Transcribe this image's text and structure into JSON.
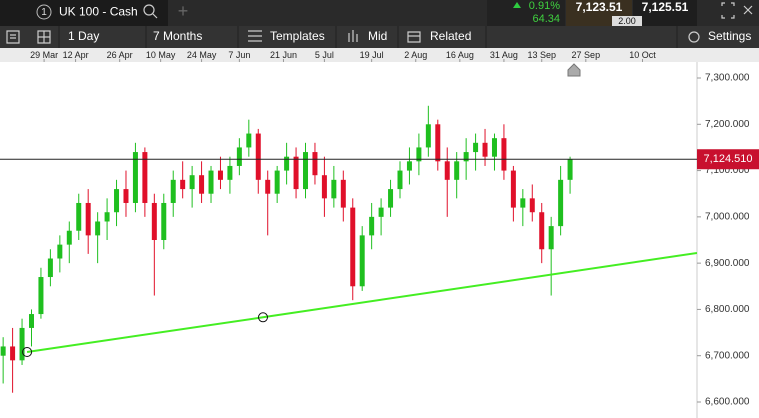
{
  "header": {
    "tab_number": "1",
    "instrument": "UK 100 - Cash",
    "add_tab": "+",
    "change_pct": "0.91%",
    "change_pts": "64.34",
    "sell": "7,123.51",
    "buy": "7,125.51",
    "spread": "2.00"
  },
  "toolbar": {
    "interval": "1 Day",
    "range": "7 Months",
    "templates": "Templates",
    "price_type": "Mid",
    "related": "Related",
    "settings": "Settings"
  },
  "chart_data": {
    "type": "candlestick",
    "up_color": "#1fbf1f",
    "down_color": "#e0102a",
    "trendline_color": "#44ee22",
    "xlim": [
      0,
      221.3
    ],
    "ylim": [
      6565.4,
      7334.6
    ],
    "xticks": [
      {
        "value": 14,
        "label": "29 Mar"
      },
      {
        "value": 24,
        "label": "12 Apr"
      },
      {
        "value": 38,
        "label": "26 Apr"
      },
      {
        "value": 51,
        "label": "10 May"
      },
      {
        "value": 64,
        "label": "24 May"
      },
      {
        "value": 76,
        "label": "7 Jun"
      },
      {
        "value": 90,
        "label": "21 Jun"
      },
      {
        "value": 103,
        "label": "5 Jul"
      },
      {
        "value": 118,
        "label": "19 Jul"
      },
      {
        "value": 132,
        "label": "2 Aug"
      },
      {
        "value": 146,
        "label": "16 Aug"
      },
      {
        "value": 160,
        "label": "31 Aug"
      },
      {
        "value": 172,
        "label": "13 Sep"
      },
      {
        "value": 186,
        "label": "27 Sep"
      },
      {
        "value": 204,
        "label": "10 Oct"
      }
    ],
    "yticks": [
      {
        "value": 6600,
        "label": "6,600.000"
      },
      {
        "value": 6700,
        "label": "6,700.000"
      },
      {
        "value": 6800,
        "label": "6,800.000"
      },
      {
        "value": 6900,
        "label": "6,900.000"
      },
      {
        "value": 7000,
        "label": "7,000.000"
      },
      {
        "value": 7100,
        "label": "7,100.000"
      },
      {
        "value": 7200,
        "label": "7,200.000"
      },
      {
        "value": 7300,
        "label": "7,300.000"
      }
    ],
    "current_price": {
      "value": 7124.51,
      "label": "7,124.510"
    },
    "trendline": {
      "x": [
        8.6,
        83.5,
        221.3
      ],
      "y": [
        6708,
        6783,
        6922
      ]
    },
    "x": [
      1,
      4,
      7,
      10,
      13,
      16,
      19,
      22,
      25,
      28,
      31,
      34,
      37,
      40,
      43,
      46,
      49,
      52,
      55,
      58,
      61,
      64,
      67,
      70,
      73,
      76,
      79,
      82,
      85,
      88,
      91,
      94,
      97,
      100,
      103,
      106,
      109,
      112,
      115,
      118,
      121,
      124,
      127,
      130,
      133,
      136,
      139,
      142,
      145,
      148,
      151,
      154,
      157,
      160,
      163,
      166,
      169,
      172,
      175,
      178,
      181
    ],
    "open": [
      6700,
      6720,
      6690,
      6760,
      6790,
      6870,
      6910,
      6940,
      6970,
      7030,
      6960,
      6990,
      7010,
      7060,
      7030,
      7140,
      7030,
      6950,
      7030,
      7080,
      7060,
      7090,
      7050,
      7100,
      7080,
      7110,
      7150,
      7180,
      7080,
      7050,
      7100,
      7130,
      7060,
      7140,
      7090,
      7040,
      7080,
      7020,
      6850,
      6960,
      7000,
      7020,
      7060,
      7100,
      7120,
      7150,
      7200,
      7120,
      7080,
      7120,
      7140,
      7160,
      7130,
      7170,
      7100,
      7020,
      7040,
      7010,
      6930,
      6980,
      7080
    ],
    "high": [
      6740,
      6760,
      6780,
      6800,
      6890,
      6930,
      6960,
      6990,
      7050,
      7060,
      7010,
      7040,
      7080,
      7100,
      7160,
      7150,
      7050,
      7050,
      7100,
      7120,
      7110,
      7120,
      7110,
      7130,
      7130,
      7170,
      7210,
      7190,
      7100,
      7110,
      7160,
      7150,
      7160,
      7160,
      7130,
      7110,
      7100,
      7040,
      6980,
      7030,
      7040,
      7080,
      7120,
      7150,
      7180,
      7240,
      7210,
      7150,
      7140,
      7170,
      7180,
      7190,
      7180,
      7200,
      7110,
      7060,
      7070,
      7030,
      7000,
      7110,
      7130
    ],
    "low": [
      6640,
      6620,
      6680,
      6720,
      6780,
      6850,
      6880,
      6900,
      6950,
      6920,
      6900,
      6950,
      6980,
      7000,
      7010,
      7000,
      6830,
      6930,
      7000,
      7040,
      7020,
      7030,
      7030,
      7060,
      7050,
      7090,
      7130,
      7050,
      6960,
      7030,
      7070,
      7040,
      7040,
      7070,
      7000,
      7020,
      6990,
      6820,
      6840,
      6930,
      6960,
      7000,
      7040,
      7070,
      7090,
      7130,
      7100,
      7000,
      7040,
      7080,
      7100,
      7110,
      7100,
      7080,
      6990,
      6980,
      6990,
      6900,
      6830,
      6960,
      7050
    ],
    "close": [
      6720,
      6690,
      6760,
      6790,
      6870,
      6910,
      6940,
      6970,
      7030,
      6960,
      6990,
      7010,
      7060,
      7030,
      7140,
      7030,
      6950,
      7030,
      7080,
      7060,
      7090,
      7050,
      7100,
      7080,
      7110,
      7150,
      7180,
      7080,
      7050,
      7100,
      7130,
      7060,
      7140,
      7090,
      7040,
      7080,
      7020,
      6850,
      6960,
      7000,
      7020,
      7060,
      7100,
      7120,
      7150,
      7200,
      7120,
      7080,
      7120,
      7140,
      7160,
      7130,
      7170,
      7100,
      7020,
      7040,
      7010,
      6930,
      6980,
      7080,
      7124.51
    ]
  }
}
